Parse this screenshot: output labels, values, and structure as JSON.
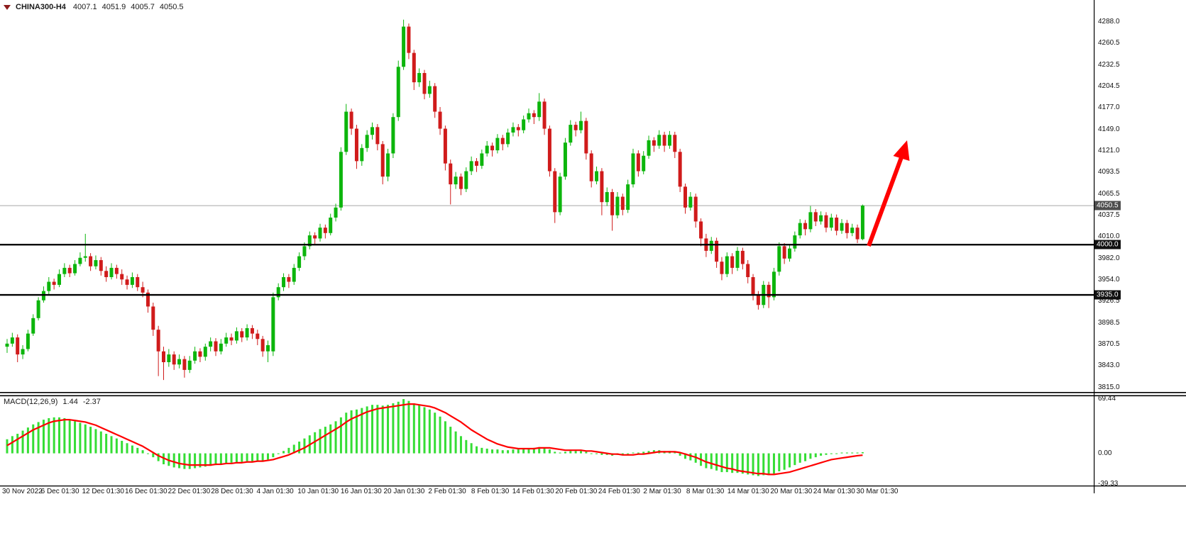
{
  "header": {
    "symbol": "CHINA300-H4",
    "open": "4007.1",
    "high": "4051.9",
    "low": "4005.7",
    "close": "4050.5"
  },
  "macd": {
    "label": "MACD(12,26,9)",
    "main_value": "1.44",
    "signal_value": "-2.37"
  },
  "price_axis": {
    "ticks": [
      "4288.0",
      "4260.5",
      "4232.5",
      "4204.5",
      "4177.0",
      "4149.0",
      "4121.0",
      "4093.5",
      "4065.5",
      "4037.5",
      "4010.0",
      "3982.0",
      "3954.0",
      "3926.5",
      "3898.5",
      "3870.5",
      "3843.0",
      "3815.0"
    ]
  },
  "macd_axis": {
    "ticks": [
      {
        "label": "69.44",
        "value": 69.44
      },
      {
        "label": "0.00",
        "value": 0
      },
      {
        "label": "-39.33",
        "value": -39.33
      }
    ]
  },
  "time_axis": {
    "ticks": [
      "30 Nov 2022",
      "6 Dec 01:30",
      "12 Dec 01:30",
      "16 Dec 01:30",
      "22 Dec 01:30",
      "28 Dec 01:30",
      "4 Jan 01:30",
      "10 Jan 01:30",
      "16 Jan 01:30",
      "20 Jan 01:30",
      "2 Feb 01:30",
      "8 Feb 01:30",
      "14 Feb 01:30",
      "20 Feb 01:30",
      "24 Feb 01:30",
      "2 Mar 01:30",
      "8 Mar 01:30",
      "14 Mar 01:30",
      "20 Mar 01:30",
      "24 Mar 01:30",
      "30 Mar 01:30"
    ]
  },
  "levels": [
    {
      "label": "4050.5",
      "value": 4050.5,
      "style": "bid"
    },
    {
      "label": "4000.0",
      "value": 4000.0,
      "style": "hline"
    },
    {
      "label": "3935.0",
      "value": 3935.0,
      "style": "hline"
    }
  ],
  "colors": {
    "bull": "#0cb50c",
    "bear": "#d01b1b",
    "macd_hist": "#35dd35",
    "macd_signal": "#ff0000",
    "bid_line": "#a6a6a6",
    "hline": "#000000",
    "arrow": "#ff0000",
    "badge_bid_bg": "#4d4d4d",
    "badge_hline_bg": "#101010",
    "border": "#000000"
  },
  "chart_data": {
    "type": "candlestick",
    "symbol": "CHINA300",
    "timeframe": "H4",
    "price_range": [
      3815.0,
      4288.0
    ],
    "macd_range": [
      -39.33,
      69.44
    ],
    "subchart": "MACD(12,26,9) histogram with signal line",
    "candles": [
      [
        3868,
        3878,
        3860,
        3872
      ],
      [
        3872,
        3886,
        3868,
        3880
      ],
      [
        3880,
        3884,
        3848,
        3858
      ],
      [
        3858,
        3870,
        3852,
        3865
      ],
      [
        3865,
        3890,
        3862,
        3885
      ],
      [
        3885,
        3910,
        3882,
        3905
      ],
      [
        3905,
        3932,
        3902,
        3928
      ],
      [
        3928,
        3946,
        3925,
        3940
      ],
      [
        3940,
        3958,
        3936,
        3952
      ],
      [
        3952,
        3956,
        3942,
        3948
      ],
      [
        3948,
        3968,
        3945,
        3962
      ],
      [
        3962,
        3976,
        3958,
        3970
      ],
      [
        3970,
        3974,
        3958,
        3963
      ],
      [
        3963,
        3980,
        3960,
        3975
      ],
      [
        3975,
        3990,
        3972,
        3983
      ],
      [
        3983,
        4014,
        3978,
        3985
      ],
      [
        3985,
        3989,
        3966,
        3972
      ],
      [
        3972,
        3986,
        3968,
        3980
      ],
      [
        3980,
        3984,
        3960,
        3966
      ],
      [
        3966,
        3972,
        3952,
        3958
      ],
      [
        3958,
        3976,
        3955,
        3970
      ],
      [
        3970,
        3974,
        3956,
        3962
      ],
      [
        3962,
        3968,
        3948,
        3955
      ],
      [
        3955,
        3960,
        3942,
        3948
      ],
      [
        3948,
        3964,
        3944,
        3958
      ],
      [
        3958,
        3962,
        3940,
        3945
      ],
      [
        3945,
        3952,
        3932,
        3938
      ],
      [
        3938,
        3942,
        3912,
        3920
      ],
      [
        3920,
        3925,
        3882,
        3890
      ],
      [
        3890,
        3895,
        3830,
        3862
      ],
      [
        3862,
        3868,
        3825,
        3848
      ],
      [
        3848,
        3865,
        3842,
        3858
      ],
      [
        3858,
        3862,
        3838,
        3845
      ],
      [
        3845,
        3858,
        3840,
        3852
      ],
      [
        3852,
        3856,
        3828,
        3838
      ],
      [
        3838,
        3856,
        3834,
        3850
      ],
      [
        3850,
        3868,
        3846,
        3862
      ],
      [
        3862,
        3866,
        3848,
        3855
      ],
      [
        3855,
        3872,
        3850,
        3868
      ],
      [
        3868,
        3880,
        3862,
        3875
      ],
      [
        3875,
        3879,
        3856,
        3862
      ],
      [
        3862,
        3878,
        3858,
        3872
      ],
      [
        3872,
        3886,
        3868,
        3880
      ],
      [
        3880,
        3885,
        3870,
        3876
      ],
      [
        3876,
        3893,
        3872,
        3888
      ],
      [
        3888,
        3892,
        3874,
        3880
      ],
      [
        3880,
        3897,
        3876,
        3892
      ],
      [
        3892,
        3896,
        3878,
        3885
      ],
      [
        3885,
        3890,
        3870,
        3878
      ],
      [
        3878,
        3882,
        3855,
        3862
      ],
      [
        3862,
        3876,
        3848,
        3870
      ],
      [
        3862,
        3938,
        3856,
        3932
      ],
      [
        3932,
        3950,
        3928,
        3945
      ],
      [
        3945,
        3963,
        3940,
        3958
      ],
      [
        3958,
        3962,
        3944,
        3952
      ],
      [
        3952,
        3975,
        3948,
        3970
      ],
      [
        3970,
        3990,
        3966,
        3985
      ],
      [
        3985,
        4003,
        3980,
        3998
      ],
      [
        3998,
        4017,
        3994,
        4012
      ],
      [
        4012,
        4016,
        4000,
        4008
      ],
      [
        4008,
        4027,
        4004,
        4022
      ],
      [
        4022,
        4026,
        4008,
        4015
      ],
      [
        4015,
        4040,
        4012,
        4035
      ],
      [
        4035,
        4053,
        4030,
        4048
      ],
      [
        4048,
        4126,
        4044,
        4120
      ],
      [
        4120,
        4182,
        4116,
        4172
      ],
      [
        4172,
        4176,
        4142,
        4150
      ],
      [
        4150,
        4155,
        4098,
        4108
      ],
      [
        4108,
        4130,
        4102,
        4125
      ],
      [
        4125,
        4148,
        4120,
        4142
      ],
      [
        4142,
        4158,
        4136,
        4152
      ],
      [
        4152,
        4156,
        4122,
        4130
      ],
      [
        4130,
        4134,
        4078,
        4088
      ],
      [
        4088,
        4124,
        4082,
        4118
      ],
      [
        4118,
        4170,
        4112,
        4165
      ],
      [
        4165,
        4238,
        4160,
        4230
      ],
      [
        4230,
        4291,
        4226,
        4282
      ],
      [
        4282,
        4286,
        4240,
        4248
      ],
      [
        4248,
        4252,
        4200,
        4210
      ],
      [
        4210,
        4228,
        4204,
        4222
      ],
      [
        4222,
        4226,
        4188,
        4195
      ],
      [
        4195,
        4212,
        4190,
        4205
      ],
      [
        4205,
        4209,
        4164,
        4172
      ],
      [
        4172,
        4178,
        4142,
        4150
      ],
      [
        4150,
        4154,
        4096,
        4105
      ],
      [
        4105,
        4110,
        4052,
        4078
      ],
      [
        4078,
        4094,
        4072,
        4088
      ],
      [
        4088,
        4092,
        4064,
        4072
      ],
      [
        4072,
        4100,
        4068,
        4095
      ],
      [
        4095,
        4114,
        4090,
        4108
      ],
      [
        4108,
        4112,
        4094,
        4102
      ],
      [
        4102,
        4123,
        4098,
        4118
      ],
      [
        4118,
        4134,
        4114,
        4128
      ],
      [
        4128,
        4132,
        4114,
        4122
      ],
      [
        4122,
        4143,
        4118,
        4138
      ],
      [
        4138,
        4142,
        4122,
        4130
      ],
      [
        4130,
        4150,
        4126,
        4145
      ],
      [
        4145,
        4158,
        4140,
        4152
      ],
      [
        4152,
        4156,
        4140,
        4148
      ],
      [
        4148,
        4167,
        4144,
        4162
      ],
      [
        4162,
        4176,
        4158,
        4170
      ],
      [
        4170,
        4174,
        4156,
        4165
      ],
      [
        4165,
        4196,
        4160,
        4185
      ],
      [
        4185,
        4189,
        4142,
        4150
      ],
      [
        4150,
        4154,
        4088,
        4095
      ],
      [
        4095,
        4099,
        4028,
        4042
      ],
      [
        4042,
        4093,
        4038,
        4088
      ],
      [
        4088,
        4138,
        4084,
        4132
      ],
      [
        4132,
        4161,
        4128,
        4155
      ],
      [
        4155,
        4159,
        4140,
        4148
      ],
      [
        4148,
        4172,
        4144,
        4160
      ],
      [
        4160,
        4164,
        4110,
        4118
      ],
      [
        4118,
        4122,
        4074,
        4082
      ],
      [
        4082,
        4101,
        4078,
        4095
      ],
      [
        4095,
        4099,
        4038,
        4055
      ],
      [
        4055,
        4074,
        4050,
        4068
      ],
      [
        4068,
        4072,
        4018,
        4038
      ],
      [
        4038,
        4068,
        4034,
        4062
      ],
      [
        4062,
        4066,
        4038,
        4045
      ],
      [
        4045,
        4084,
        4041,
        4078
      ],
      [
        4078,
        4124,
        4074,
        4118
      ],
      [
        4118,
        4122,
        4088,
        4095
      ],
      [
        4095,
        4121,
        4091,
        4115
      ],
      [
        4115,
        4141,
        4111,
        4135
      ],
      [
        4135,
        4139,
        4120,
        4128
      ],
      [
        4128,
        4148,
        4124,
        4142
      ],
      [
        4142,
        4146,
        4120,
        4128
      ],
      [
        4128,
        4147,
        4124,
        4142
      ],
      [
        4142,
        4146,
        4112,
        4120
      ],
      [
        4120,
        4124,
        4068,
        4075
      ],
      [
        4075,
        4079,
        4040,
        4048
      ],
      [
        4048,
        4068,
        4044,
        4062
      ],
      [
        4062,
        4066,
        4022,
        4030
      ],
      [
        4030,
        4034,
        3998,
        4008
      ],
      [
        4008,
        4014,
        3984,
        3992
      ],
      [
        3992,
        4010,
        3988,
        4005
      ],
      [
        4005,
        4009,
        3970,
        3978
      ],
      [
        3978,
        3984,
        3954,
        3962
      ],
      [
        3962,
        3990,
        3958,
        3985
      ],
      [
        3985,
        3989,
        3962,
        3970
      ],
      [
        3970,
        3997,
        3966,
        3992
      ],
      [
        3992,
        3996,
        3968,
        3975
      ],
      [
        3975,
        3980,
        3950,
        3958
      ],
      [
        3958,
        3962,
        3928,
        3935
      ],
      [
        3935,
        3940,
        3916,
        3922
      ],
      [
        3922,
        3953,
        3918,
        3948
      ],
      [
        3948,
        3952,
        3918,
        3932
      ],
      [
        3932,
        3970,
        3928,
        3965
      ],
      [
        3965,
        4003,
        3960,
        3998
      ],
      [
        3998,
        4002,
        3975,
        3982
      ],
      [
        3982,
        4000,
        3978,
        3995
      ],
      [
        3995,
        4017,
        3991,
        4012
      ],
      [
        4012,
        4033,
        4008,
        4028
      ],
      [
        4028,
        4032,
        4012,
        4020
      ],
      [
        4020,
        4050,
        4016,
        4042
      ],
      [
        4042,
        4046,
        4024,
        4030
      ],
      [
        4030,
        4043,
        4026,
        4038
      ],
      [
        4038,
        4042,
        4016,
        4022
      ],
      [
        4022,
        4040,
        4018,
        4035
      ],
      [
        4035,
        4039,
        4012,
        4018
      ],
      [
        4018,
        4033,
        4014,
        4028
      ],
      [
        4028,
        4032,
        4008,
        4015
      ],
      [
        4015,
        4027,
        4011,
        4022
      ],
      [
        4022,
        4026,
        4002,
        4007
      ],
      [
        4007.1,
        4051.9,
        4005.7,
        4050.5
      ]
    ],
    "macd_histogram": [
      18,
      22,
      25,
      29,
      33,
      37,
      40,
      43,
      45,
      46,
      46,
      45,
      43,
      41,
      39,
      37,
      34,
      31,
      28,
      25,
      22,
      19,
      16,
      13,
      10,
      7,
      4,
      0,
      -5,
      -10,
      -14,
      -16,
      -18,
      -19,
      -20,
      -20,
      -19,
      -18,
      -17,
      -16,
      -15,
      -14,
      -13,
      -12,
      -12,
      -11,
      -10,
      -10,
      -9,
      -9,
      -8,
      -5,
      -1,
      3,
      7,
      11,
      15,
      19,
      23,
      27,
      31,
      34,
      37,
      41,
      46,
      52,
      55,
      56,
      58,
      60,
      62,
      62,
      61,
      62,
      64,
      66,
      69.4,
      67,
      64,
      62,
      59,
      56,
      52,
      47,
      41,
      34,
      28,
      22,
      17,
      13,
      9,
      7,
      6,
      5,
      5,
      4,
      4,
      5,
      5,
      6,
      6,
      7,
      8,
      7,
      5,
      2,
      1,
      2,
      3,
      3,
      3,
      2,
      0,
      -1,
      -2,
      -2,
      -3,
      -2,
      -2,
      -1,
      1,
      1,
      2,
      3,
      4,
      4,
      3,
      3,
      1,
      -3,
      -7,
      -9,
      -12,
      -16,
      -19,
      -20,
      -22,
      -24,
      -24,
      -25,
      -25,
      -26,
      -27,
      -28,
      -29,
      -28,
      -28,
      -26,
      -23,
      -21,
      -18,
      -15,
      -12,
      -10,
      -7,
      -5,
      -3,
      -2,
      -1,
      0,
      1,
      1,
      1,
      1,
      1.44
    ],
    "macd_signal": [
      10,
      14,
      18,
      22,
      26,
      30,
      33,
      36,
      39,
      41,
      42,
      43,
      43,
      42,
      41,
      40,
      38,
      36,
      33,
      30,
      27,
      24,
      21,
      18,
      15,
      12,
      9,
      5,
      1,
      -3,
      -6,
      -9,
      -11,
      -13,
      -14,
      -15,
      -15,
      -15,
      -15,
      -15,
      -14,
      -14,
      -13,
      -13,
      -12,
      -12,
      -11,
      -11,
      -10,
      -10,
      -9,
      -8,
      -6,
      -4,
      -2,
      1,
      4,
      7,
      11,
      15,
      19,
      23,
      27,
      31,
      35,
      40,
      44,
      47,
      50,
      53,
      55,
      57,
      58,
      59,
      60,
      61,
      62,
      63,
      63,
      62,
      61,
      60,
      58,
      55,
      52,
      48,
      44,
      40,
      35,
      30,
      26,
      22,
      18,
      15,
      12,
      10,
      8,
      7,
      6,
      6,
      6,
      6,
      7,
      7,
      7,
      6,
      5,
      4,
      4,
      4,
      4,
      3,
      3,
      2,
      1,
      0,
      -1,
      -1,
      -2,
      -2,
      -2,
      -1,
      -1,
      0,
      1,
      2,
      2,
      2,
      2,
      1,
      -1,
      -3,
      -5,
      -8,
      -11,
      -13,
      -15,
      -17,
      -19,
      -20,
      -22,
      -23,
      -24,
      -25,
      -26,
      -26,
      -27,
      -27,
      -26,
      -25,
      -24,
      -22,
      -20,
      -18,
      -16,
      -14,
      -12,
      -10,
      -8,
      -7,
      -6,
      -5,
      -4,
      -3,
      -2.37
    ]
  }
}
